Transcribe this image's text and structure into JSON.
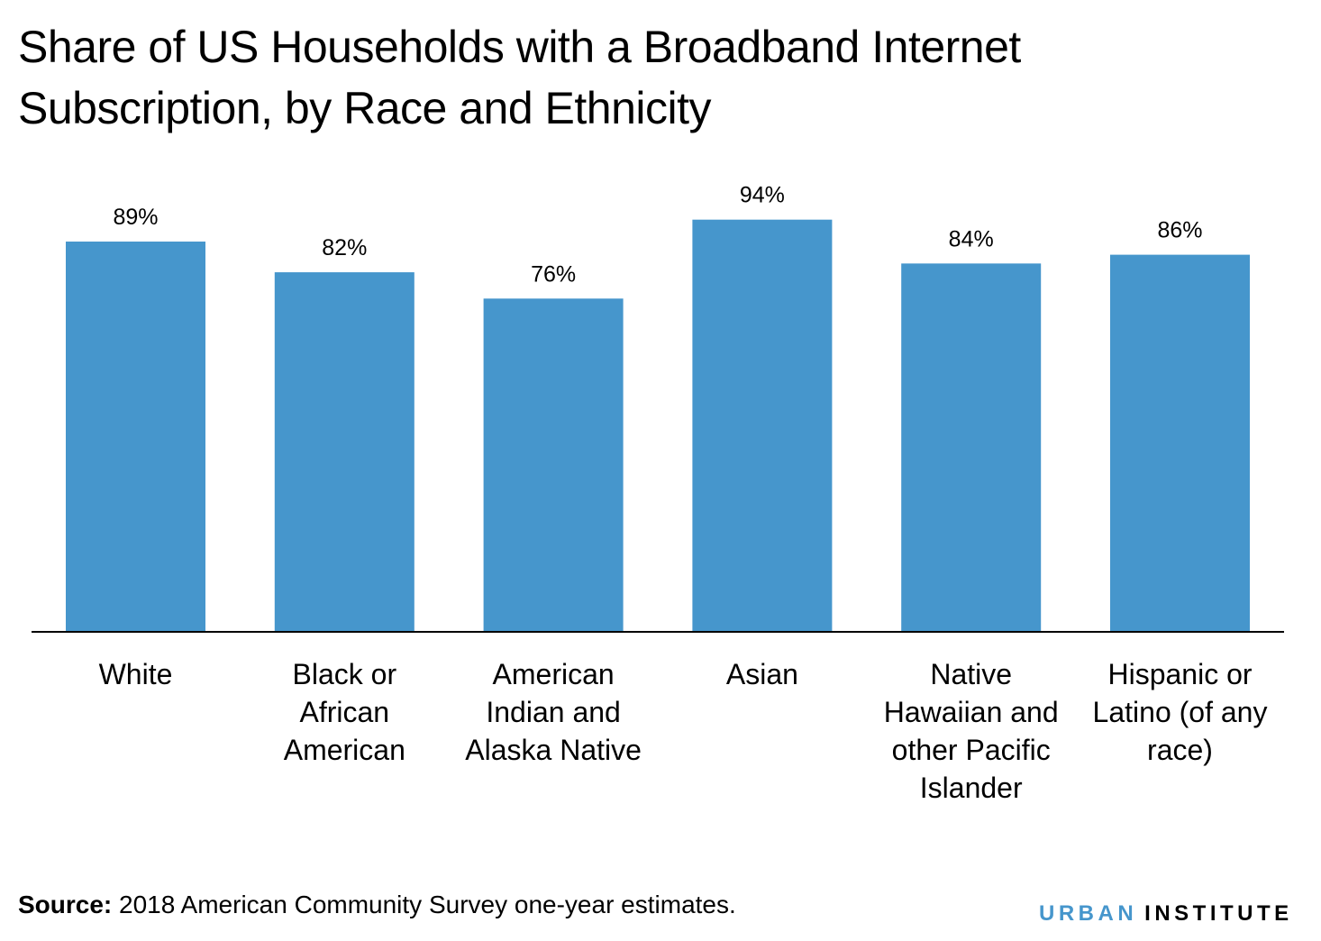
{
  "chart_data": {
    "type": "bar",
    "title": "Share of US Households with a Broadband Internet Subscription, by Race and Ethnicity",
    "categories": [
      "White",
      "Black or African American",
      "American Indian and Alaska Native",
      "Asian",
      "Native Hawaiian and other Pacific Islander",
      "Hispanic or Latino (of any race)"
    ],
    "category_lines": [
      [
        "White"
      ],
      [
        "Black or",
        "African",
        "American"
      ],
      [
        "American",
        "Indian and",
        "Alaska Native"
      ],
      [
        "Asian"
      ],
      [
        "Native",
        "Hawaiian and",
        "other Pacific",
        "Islander"
      ],
      [
        "Hispanic or",
        "Latino (of any",
        "race)"
      ]
    ],
    "values": [
      89,
      82,
      76,
      94,
      84,
      86
    ],
    "data_labels": [
      "89%",
      "82%",
      "76%",
      "94%",
      "84%",
      "86%"
    ],
    "unit": "%",
    "ylim": [
      0,
      100
    ],
    "grid": false,
    "bar_color": "#4696cc"
  },
  "source": {
    "label": "Source:",
    "text": " 2018 American Community Survey one-year estimates."
  },
  "logo": {
    "part1": "URBAN",
    "part2": "INSTITUTE",
    "accent": "#4696cc"
  }
}
